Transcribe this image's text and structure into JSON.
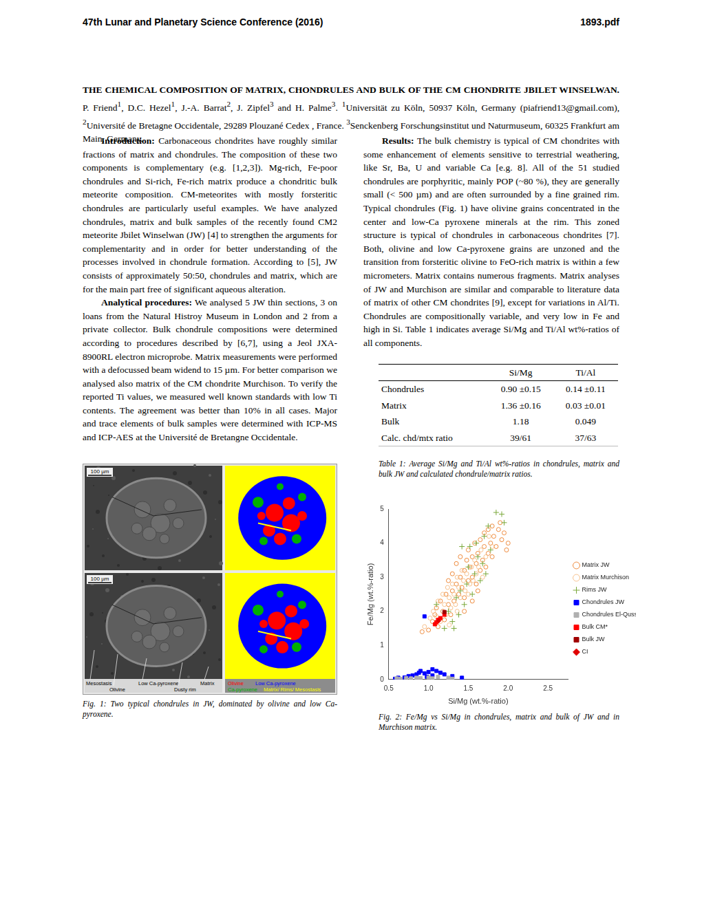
{
  "header": {
    "left": "47th Lunar and Planetary Science Conference (2016)",
    "right": "1893.pdf"
  },
  "title_block": {
    "title": "THE CHEMICAL COMPOSITION OF MATRIX, CHONDRULES AND BULK OF THE CM CHONDRITE JBILET WINSELWAN.",
    "authors": [
      {
        "text": "P. Friend"
      },
      {
        "sup": "1"
      },
      {
        "text": ", D.C. Hezel"
      },
      {
        "sup": "1"
      },
      {
        "text": ", J.-A. Barrat"
      },
      {
        "sup": "2"
      },
      {
        "text": ", J. Zipfel"
      },
      {
        "sup": "3"
      },
      {
        "text": " and H. Palme"
      },
      {
        "sup": "3"
      },
      {
        "text": "."
      }
    ],
    "affiliations": [
      {
        "sup": "1"
      },
      {
        "text": "Universität zu Köln, 50937 Köln, Germany (piafriend13@gmail.com), "
      },
      {
        "sup": "2"
      },
      {
        "text": "Université de Bretagne Occidentale, 29289 Plouzané Cedex , France. "
      },
      {
        "sup": "3"
      },
      {
        "text": "Senckenberg Forschungsinstitut und Naturmuseum, 60325 Frankfurt am Main, Germany."
      }
    ]
  },
  "left_column": [
    {
      "heading": "Introduction:",
      "text": "Carbonaceous chondrites have roughly similar fractions of matrix and chondrules. The composition of these two components is complementary (e.g. [1,2,3]). Mg-rich, Fe-poor chondrules and Si-rich, Fe-rich matrix produce a chondritic bulk meteorite composition. CM-meteorites with mostly forsteritic chondrules are particularly useful examples. We have analyzed chondrules, matrix and bulk samples of the recently found CM2 meteorite Jbilet Winselwan (JW) [4] to strengthen the arguments for complementarity and in order for better understanding of the processes involved in chondrule formation. According to [5], JW consists of approximately 50:50, chondrules and matrix, which are for the main part free of significant aqueous alteration."
    },
    {
      "heading": "Analytical procedures:",
      "text": "We analysed 5 JW thin sections, 3 on loans from the Natural Histroy Museum in London and 2 from a private collector. Bulk chondrule compositions were determined according to procedures described by [6,7], using a Jeol JXA-8900RL electron microprobe. Matrix measurements were performed with a defocussed beam widend to 15 µm. For better comparison we analysed also matrix of the CM chondrite Murchison. To verify the reported Ti values, we measured well known standards with low Ti contents. The agreement was better than 10% in all cases. Major and trace elements of bulk samples were determined with ICP-MS and ICP-AES at the Université de Bretangne Occidentale."
    }
  ],
  "right_column": [
    {
      "heading": "Results:",
      "text": "The bulk chemistry is typical of CM chondrites with some enhancement of elements sensitive to terrestrial weathering, like Sr, Ba, U and variable Ca [e.g. 8]. All of the 51 studied chondrules are porphyritic, mainly POP (~80 %), they are generally small (< 500 µm) and are often surrounded by a fine grained rim. Typical chondrules (Fig. 1) have olivine grains concentrated in the center and low-Ca pyroxene minerals at the rim. This zoned structure is typical of chondrules in carbonaceous chondrites [7]. Both, olivine and low Ca-pyroxene grains are unzoned and the transition from forsteritic olivine to FeO-rich matrix is within a few micrometers. Matrix contains numerous fragments. Matrix analyses of JW and Murchison are similar and comparable to literature data of matrix of other CM chondrites [9], except for variations in Al/Ti. Chondrules are compositionally variable, and very low in Fe and high in Si. Table 1 indicates average Si/Mg and Ti/Al wt%-ratios of all components."
    }
  ],
  "table": {
    "header": [
      "Si/Mg",
      "Ti/Al"
    ],
    "rows": [
      {
        "label": "Chondrules",
        "cells": [
          "0.90 ±0.15",
          "0.14 ±0.11"
        ]
      },
      {
        "label": "Matrix",
        "cells": [
          "1.36 ±0.16",
          "0.03 ±0.01"
        ]
      },
      {
        "label": "Bulk",
        "cells": [
          "1.18",
          "0.049"
        ]
      },
      {
        "label": "Calc. chd/mtx ratio",
        "cells": [
          "39/61",
          "37/63"
        ]
      }
    ],
    "caption": "Table 1: Average Si/Mg and Ti/Al wt%-ratios in chondrules, matrix and bulk JW and calculated chondrule/matrix ratios."
  },
  "figure1": {
    "scale_bars": [
      "100 µm",
      "100 µm"
    ],
    "annotations": [
      "Mesostasis",
      "Olivine",
      "Low Ca-pyroxene",
      "Dusty rim",
      "Matrix"
    ],
    "phase_legend": [
      {
        "label": "Olivine",
        "color": "#ff0000"
      },
      {
        "label": "Low Ca-pyroxene",
        "color": "#0000ff"
      },
      {
        "label": "Ca-pyroxene",
        "color": "#00b000"
      },
      {
        "label": "Matrix/ Rims/ Mesostasis",
        "color": "#ffff00"
      }
    ],
    "caption": "Fig. 1: Two typical chondrules in JW, dominated by olivine and low Ca-pyroxene."
  },
  "chart_data": {
    "type": "scatter",
    "x_label": "Si/Mg (wt.%-ratio)",
    "y_label": "Fe/Mg (wt.%-ratio)",
    "xlim": [
      0.5,
      2.75
    ],
    "xticks": [
      {
        "value": 0.5,
        "label": "0.5"
      },
      {
        "value": 1,
        "label": "1.0"
      },
      {
        "value": 1.5,
        "label": "1.5"
      },
      {
        "value": 2,
        "label": "2.0"
      },
      {
        "value": 2.5,
        "label": "2.5"
      }
    ],
    "ylim": [
      0,
      5
    ],
    "yticks": [
      0,
      1,
      2,
      3,
      4,
      5
    ],
    "grid": false,
    "legend": "right",
    "caption": "Fig. 2: Fe/Mg vs Si/Mg in chondrules, matrix and bulk of JW and in Murchison matrix.",
    "series": [
      {
        "name": "Matrix JW",
        "color": "#ee8a3c",
        "marker": "open_circle",
        "values": [
          [
            1.0,
            1.45
          ],
          [
            0.92,
            1.4
          ],
          [
            1.05,
            1.7
          ],
          [
            1.08,
            1.9
          ],
          [
            1.1,
            2.1
          ],
          [
            1.12,
            1.55
          ],
          [
            1.15,
            2.3
          ],
          [
            1.18,
            2.0
          ],
          [
            1.2,
            1.75
          ],
          [
            1.22,
            2.5
          ],
          [
            1.25,
            2.2
          ],
          [
            1.25,
            2.9
          ],
          [
            1.28,
            1.9
          ],
          [
            1.3,
            2.6
          ],
          [
            1.3,
            3.1
          ],
          [
            1.32,
            2.3
          ],
          [
            1.35,
            2.8
          ],
          [
            1.35,
            3.4
          ],
          [
            1.38,
            2.5
          ],
          [
            1.4,
            3.0
          ],
          [
            1.4,
            3.6
          ],
          [
            1.42,
            2.7
          ],
          [
            1.45,
            3.2
          ],
          [
            1.45,
            2.4
          ],
          [
            1.48,
            3.5
          ],
          [
            1.5,
            2.9
          ],
          [
            1.5,
            3.8
          ],
          [
            1.52,
            3.3
          ],
          [
            1.55,
            3.0
          ],
          [
            1.55,
            3.6
          ],
          [
            1.58,
            4.0
          ],
          [
            1.6,
            3.4
          ],
          [
            1.6,
            2.8
          ],
          [
            1.62,
            3.7
          ],
          [
            1.65,
            3.2
          ],
          [
            1.65,
            4.1
          ],
          [
            1.68,
            3.5
          ],
          [
            1.7,
            3.9
          ],
          [
            1.7,
            4.3
          ],
          [
            1.72,
            3.3
          ],
          [
            1.75,
            3.7
          ],
          [
            1.75,
            4.4
          ],
          [
            1.78,
            4.0
          ],
          [
            1.8,
            3.6
          ],
          [
            1.8,
            4.5
          ],
          [
            1.82,
            4.2
          ],
          [
            1.85,
            3.9
          ],
          [
            1.88,
            4.4
          ],
          [
            1.9,
            4.6
          ],
          [
            1.92,
            4.1
          ],
          [
            1.95,
            4.3
          ],
          [
            1.98,
            3.8
          ],
          [
            2.0,
            4.0
          ],
          [
            1.62,
            2.6
          ],
          [
            1.45,
            2.0
          ],
          [
            1.55,
            2.3
          ]
        ]
      },
      {
        "name": "Matrix Murchison",
        "color": "#f6c08c",
        "marker": "open_circle",
        "values": [
          [
            0.95,
            1.55
          ],
          [
            1.02,
            1.8
          ],
          [
            1.06,
            2.0
          ],
          [
            1.1,
            1.85
          ],
          [
            1.12,
            2.3
          ],
          [
            1.15,
            1.7
          ],
          [
            1.18,
            2.5
          ],
          [
            1.2,
            2.2
          ],
          [
            1.22,
            1.9
          ],
          [
            1.24,
            2.7
          ],
          [
            1.26,
            2.4
          ],
          [
            1.28,
            2.1
          ],
          [
            1.3,
            2.8
          ],
          [
            1.32,
            2.5
          ],
          [
            1.34,
            2.2
          ],
          [
            1.36,
            3.0
          ],
          [
            1.38,
            2.7
          ],
          [
            1.4,
            2.4
          ],
          [
            1.42,
            3.2
          ],
          [
            1.44,
            2.9
          ],
          [
            1.46,
            2.6
          ],
          [
            1.48,
            3.1
          ],
          [
            1.5,
            2.5
          ],
          [
            1.52,
            2.8
          ],
          [
            1.54,
            3.3
          ],
          [
            1.56,
            2.9
          ],
          [
            1.58,
            3.5
          ],
          [
            1.6,
            3.1
          ],
          [
            1.63,
            3.3
          ],
          [
            1.66,
            3.8
          ],
          [
            1.68,
            3.0
          ],
          [
            1.72,
            3.6
          ],
          [
            1.76,
            4.2
          ],
          [
            1.8,
            3.9
          ],
          [
            1.36,
            2.0
          ],
          [
            1.26,
            1.6
          ]
        ]
      },
      {
        "name": "Rims JW",
        "color": "#7aa83a",
        "marker": "plus",
        "values": [
          [
            1.2,
            1.5
          ],
          [
            1.25,
            2.0
          ],
          [
            1.3,
            1.7
          ],
          [
            1.35,
            2.4
          ],
          [
            1.38,
            1.9
          ],
          [
            1.4,
            2.6
          ],
          [
            1.42,
            3.9
          ],
          [
            1.45,
            2.2
          ],
          [
            1.48,
            2.8
          ],
          [
            1.5,
            3.3
          ],
          [
            1.52,
            3.9
          ],
          [
            1.55,
            2.5
          ],
          [
            1.58,
            3.1
          ],
          [
            1.6,
            4.0
          ],
          [
            1.62,
            3.6
          ],
          [
            1.65,
            2.9
          ],
          [
            1.68,
            3.4
          ],
          [
            1.7,
            4.2
          ],
          [
            1.72,
            3.1
          ],
          [
            1.75,
            4.5
          ],
          [
            1.78,
            3.8
          ],
          [
            1.85,
            4.9
          ],
          [
            1.92,
            4.85
          ],
          [
            1.95,
            4.6
          ],
          [
            1.1,
            2.2
          ],
          [
            1.32,
            1.5
          ]
        ]
      },
      {
        "name": "Chondrules JW",
        "color": "#0000ff",
        "marker": "square",
        "values": [
          [
            0.58,
            0.02
          ],
          [
            0.62,
            0.05
          ],
          [
            0.7,
            0.06
          ],
          [
            0.75,
            0.1
          ],
          [
            0.8,
            0.12
          ],
          [
            0.85,
            0.15
          ],
          [
            0.88,
            0.2
          ],
          [
            0.9,
            0.25
          ],
          [
            0.95,
            0.18
          ],
          [
            1.0,
            0.22
          ],
          [
            1.05,
            0.3
          ],
          [
            1.1,
            0.25
          ],
          [
            1.15,
            0.2
          ],
          [
            1.2,
            0.15
          ],
          [
            1.3,
            0.1
          ],
          [
            1.42,
            0.05
          ],
          [
            0.95,
            1.85
          ],
          [
            1.05,
            0.12
          ],
          [
            0.98,
            0.08
          ]
        ]
      },
      {
        "name": "Chondrules El-Quss Abu Said",
        "color": "#b0b0b0",
        "marker": "square",
        "values": [
          [
            0.6,
            0.03
          ],
          [
            0.65,
            0.02
          ],
          [
            0.72,
            0.04
          ],
          [
            0.78,
            0.03
          ],
          [
            0.85,
            0.05
          ],
          [
            0.9,
            0.04
          ],
          [
            1.0,
            0.06
          ],
          [
            1.05,
            0.03
          ],
          [
            1.12,
            0.08
          ],
          [
            1.25,
            0.05
          ],
          [
            1.3,
            0.02
          ]
        ]
      },
      {
        "name": "Bulk CM*",
        "color": "#ff0000",
        "marker": "square",
        "values": [
          [
            1.1,
            1.68
          ],
          [
            1.12,
            1.75
          ],
          [
            1.08,
            1.62
          ],
          [
            1.15,
            1.8
          ],
          [
            1.2,
            1.9
          ]
        ]
      },
      {
        "name": "Bulk JW",
        "color": "#a00000",
        "marker": "square",
        "values": [
          [
            1.2,
            1.98
          ]
        ]
      },
      {
        "name": "CI",
        "color": "#e00000",
        "marker": "diamond",
        "values": [
          [
            1.13,
            1.72
          ]
        ]
      }
    ]
  }
}
